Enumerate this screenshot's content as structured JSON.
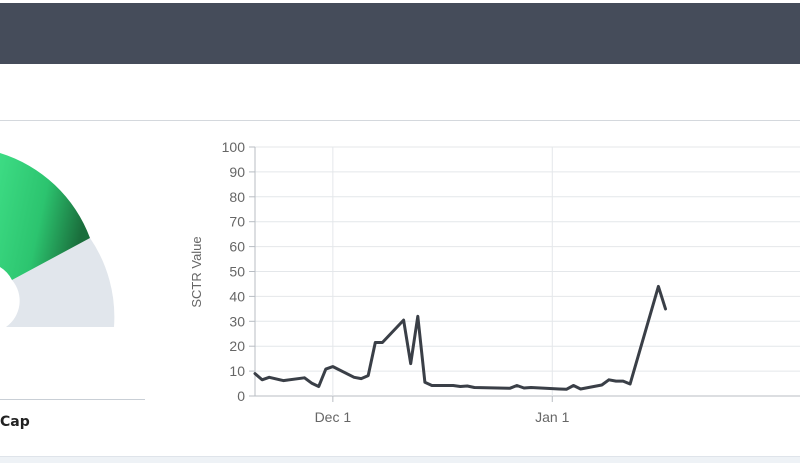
{
  "gauge": {
    "label": "Cap",
    "colors": {
      "fill_start": "#3ddc84",
      "fill_end": "#1a6e3c",
      "track": "#e1e6ec"
    }
  },
  "chart_data": {
    "type": "line",
    "ylabel": "SCTR Value",
    "ylim": [
      0,
      100
    ],
    "yticks": [
      0,
      10,
      20,
      30,
      40,
      50,
      60,
      70,
      80,
      90,
      100
    ],
    "xticks": [
      {
        "label": "Dec 1",
        "date": "2023-12-01"
      },
      {
        "label": "Jan 1",
        "date": "2024-01-01"
      }
    ],
    "xrange": [
      "2023-11-20",
      "2024-02-05"
    ],
    "line_color": "#3a3f47",
    "grid": true,
    "points": [
      {
        "x": "2023-11-20",
        "y": 9
      },
      {
        "x": "2023-11-21",
        "y": 6.5
      },
      {
        "x": "2023-11-22",
        "y": 7.5
      },
      {
        "x": "2023-11-24",
        "y": 6.2
      },
      {
        "x": "2023-11-27",
        "y": 7.3
      },
      {
        "x": "2023-11-28",
        "y": 5.2
      },
      {
        "x": "2023-11-29",
        "y": 3.8
      },
      {
        "x": "2023-11-30",
        "y": 10.8
      },
      {
        "x": "2023-12-01",
        "y": 11.8
      },
      {
        "x": "2023-12-04",
        "y": 7.5
      },
      {
        "x": "2023-12-05",
        "y": 7
      },
      {
        "x": "2023-12-06",
        "y": 8.2
      },
      {
        "x": "2023-12-07",
        "y": 21.5
      },
      {
        "x": "2023-12-08",
        "y": 21.5
      },
      {
        "x": "2023-12-11",
        "y": 30.5
      },
      {
        "x": "2023-12-12",
        "y": 13
      },
      {
        "x": "2023-12-13",
        "y": 32
      },
      {
        "x": "2023-12-14",
        "y": 5.5
      },
      {
        "x": "2023-12-15",
        "y": 4.2
      },
      {
        "x": "2023-12-18",
        "y": 4.2
      },
      {
        "x": "2023-12-19",
        "y": 3.8
      },
      {
        "x": "2023-12-20",
        "y": 4
      },
      {
        "x": "2023-12-21",
        "y": 3.4
      },
      {
        "x": "2023-12-26",
        "y": 3.1
      },
      {
        "x": "2023-12-27",
        "y": 4.2
      },
      {
        "x": "2023-12-28",
        "y": 3.2
      },
      {
        "x": "2023-12-29",
        "y": 3.4
      },
      {
        "x": "2024-01-02",
        "y": 2.8
      },
      {
        "x": "2024-01-03",
        "y": 2.7
      },
      {
        "x": "2024-01-04",
        "y": 4.2
      },
      {
        "x": "2024-01-05",
        "y": 2.8
      },
      {
        "x": "2024-01-08",
        "y": 4.4
      },
      {
        "x": "2024-01-09",
        "y": 6.5
      },
      {
        "x": "2024-01-10",
        "y": 6
      },
      {
        "x": "2024-01-11",
        "y": 6
      },
      {
        "x": "2024-01-12",
        "y": 4.8
      },
      {
        "x": "2024-01-16",
        "y": 44
      },
      {
        "x": "2024-01-17",
        "y": 35
      }
    ]
  }
}
